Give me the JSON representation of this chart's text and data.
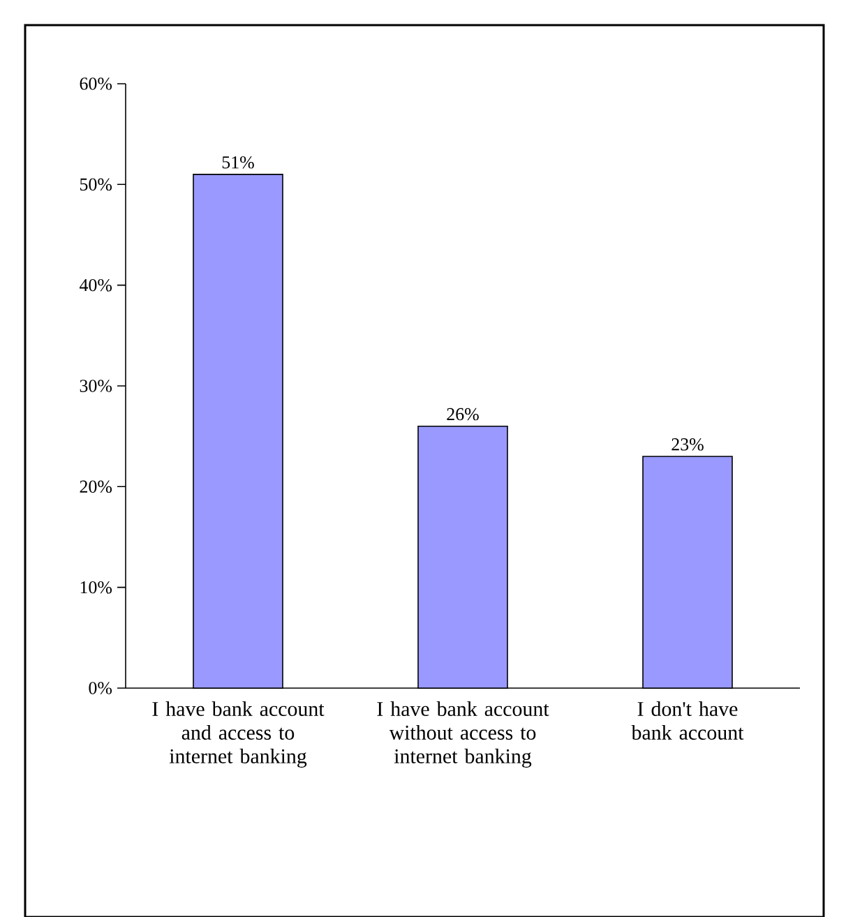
{
  "chart_data": {
    "type": "bar",
    "categories": [
      "I have bank account and access to internet banking",
      "I have bank account without access to internet banking",
      "I don't have bank account"
    ],
    "values": [
      51,
      26,
      23
    ],
    "value_labels": [
      "51%",
      "26%",
      "23%"
    ],
    "color": "#9999ff",
    "ylim": [
      0,
      60
    ],
    "yticks": [
      {
        "value": 0,
        "label": "0%"
      },
      {
        "value": 10,
        "label": "10%"
      },
      {
        "value": 20,
        "label": "20%"
      },
      {
        "value": 30,
        "label": "30%"
      },
      {
        "value": 40,
        "label": "40%"
      },
      {
        "value": 50,
        "label": "50%"
      },
      {
        "value": 60,
        "label": "60%"
      }
    ],
    "grid": false
  }
}
